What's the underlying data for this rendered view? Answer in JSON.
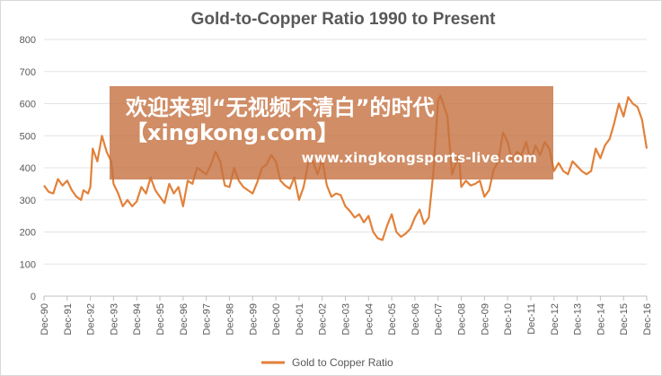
{
  "chart_data": {
    "type": "line",
    "title": "Gold-to-Copper  Ratio  1990 to Present",
    "xlabel": "",
    "ylabel": "",
    "ylim": [
      0,
      800
    ],
    "yticks": [
      0,
      100,
      200,
      300,
      400,
      500,
      600,
      700,
      800
    ],
    "grid": "horizontal",
    "legend_position": "bottom",
    "color": "#e2813a",
    "xtick_labels": [
      "Dec-90",
      "Dec-91",
      "Dec-92",
      "Dec-93",
      "Dec-94",
      "Dec-95",
      "Dec-96",
      "Dec-97",
      "Dec-98",
      "Dec-99",
      "Dec-00",
      "Dec-01",
      "Dec-02",
      "Dec-03",
      "Dec-04",
      "Dec-05",
      "Dec-06",
      "Dec-07",
      "Dec-08",
      "Dec-09",
      "Dec-10",
      "Dec-11",
      "Dec-12",
      "Dec-13",
      "Dec-14",
      "Dec-15",
      "Dec-16"
    ],
    "series": [
      {
        "name": "Gold to Copper Ratio",
        "x": [
          1990.9,
          1991.1,
          1991.3,
          1991.5,
          1991.7,
          1991.9,
          1992.1,
          1992.3,
          1992.5,
          1992.6,
          1992.8,
          1992.9,
          1993.0,
          1993.2,
          1993.4,
          1993.6,
          1993.8,
          1993.9,
          1994.1,
          1994.3,
          1994.5,
          1994.7,
          1994.9,
          1995.1,
          1995.3,
          1995.5,
          1995.7,
          1995.9,
          1996.1,
          1996.3,
          1996.5,
          1996.7,
          1996.9,
          1997.1,
          1997.3,
          1997.5,
          1997.7,
          1997.9,
          1998.1,
          1998.3,
          1998.5,
          1998.7,
          1998.9,
          1999.1,
          1999.3,
          1999.5,
          1999.7,
          1999.9,
          2000.1,
          2000.3,
          2000.5,
          2000.7,
          2000.9,
          2001.1,
          2001.3,
          2001.5,
          2001.7,
          2001.9,
          2002.1,
          2002.3,
          2002.5,
          2002.7,
          2002.9,
          2003.1,
          2003.3,
          2003.5,
          2003.7,
          2003.9,
          2004.1,
          2004.3,
          2004.5,
          2004.7,
          2004.9,
          2005.1,
          2005.3,
          2005.5,
          2005.7,
          2005.9,
          2006.1,
          2006.3,
          2006.5,
          2006.7,
          2006.9,
          2007.1,
          2007.3,
          2007.5,
          2007.7,
          2007.9,
          2008.0,
          2008.3,
          2008.5,
          2008.6,
          2008.8,
          2008.9,
          2009.1,
          2009.3,
          2009.5,
          2009.7,
          2009.9,
          2010.1,
          2010.3,
          2010.5,
          2010.7,
          2010.9,
          2011.1,
          2011.3,
          2011.5,
          2011.7,
          2011.9,
          2012.1,
          2012.3,
          2012.5,
          2012.7,
          2012.9,
          2013.1,
          2013.3,
          2013.5,
          2013.7,
          2013.9,
          2014.1,
          2014.3,
          2014.5,
          2014.7,
          2014.9,
          2015.1,
          2015.3,
          2015.5,
          2015.7,
          2015.9,
          2016.1,
          2016.3,
          2016.5,
          2016.7,
          2016.9
        ],
        "values": [
          345,
          325,
          320,
          365,
          345,
          360,
          330,
          310,
          300,
          330,
          320,
          340,
          460,
          420,
          500,
          450,
          420,
          350,
          320,
          280,
          300,
          280,
          295,
          340,
          320,
          370,
          330,
          310,
          290,
          350,
          320,
          340,
          280,
          360,
          350,
          400,
          390,
          380,
          410,
          450,
          420,
          345,
          340,
          400,
          360,
          340,
          330,
          320,
          355,
          400,
          410,
          440,
          420,
          360,
          345,
          335,
          370,
          300,
          340,
          415,
          420,
          380,
          425,
          345,
          310,
          320,
          315,
          280,
          265,
          245,
          255,
          230,
          250,
          200,
          180,
          175,
          220,
          255,
          200,
          185,
          195,
          210,
          245,
          270,
          225,
          245,
          390,
          610,
          625,
          560,
          380,
          400,
          440,
          340,
          360,
          345,
          350,
          360,
          310,
          330,
          395,
          420,
          510,
          480,
          420,
          450,
          440,
          480,
          420,
          470,
          440,
          480,
          460,
          390,
          415,
          390,
          380,
          420,
          405,
          390,
          380,
          390,
          460,
          430,
          470,
          490,
          540,
          600,
          560,
          620,
          600,
          590,
          550,
          460
        ]
      }
    ]
  },
  "overlay": {
    "line1": "欢迎来到“无视频不清白”的时代",
    "line2": "【xingkong.com】",
    "url": "www.xingkongsports-live.com"
  }
}
